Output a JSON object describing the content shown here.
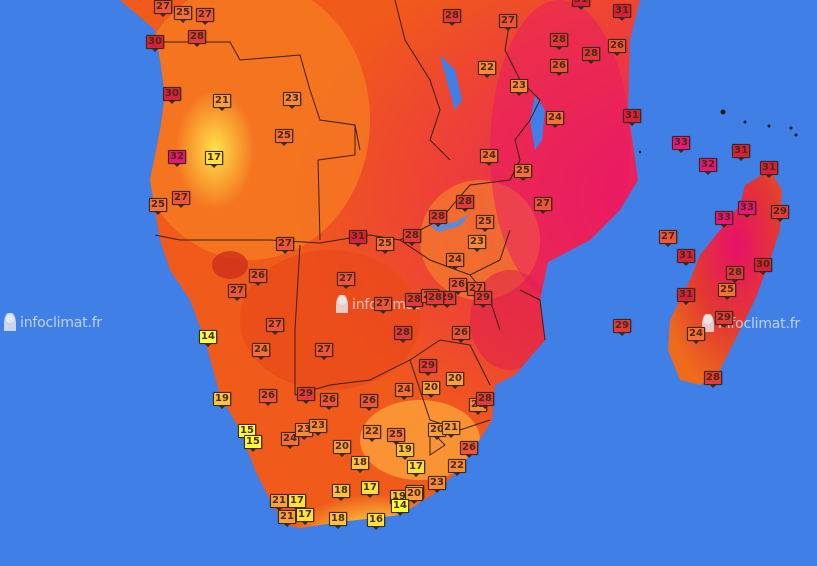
{
  "watermarks": [
    {
      "text": "infoclimat.fr"
    },
    {
      "text": "infoclimat"
    },
    {
      "text": "infoclimat.fr"
    }
  ],
  "stations": [
    {
      "t": "27"
    },
    {
      "t": "25"
    },
    {
      "t": "27"
    },
    {
      "t": "30"
    },
    {
      "t": "28"
    },
    {
      "t": "28"
    },
    {
      "t": "27"
    },
    {
      "t": "31"
    },
    {
      "t": "31"
    },
    {
      "t": "28"
    },
    {
      "t": "28"
    },
    {
      "t": "26"
    },
    {
      "t": "22"
    },
    {
      "t": "26"
    },
    {
      "t": "30"
    },
    {
      "t": "21"
    },
    {
      "t": "23"
    },
    {
      "t": "23"
    },
    {
      "t": "31"
    },
    {
      "t": "24"
    },
    {
      "t": "25"
    },
    {
      "t": "32"
    },
    {
      "t": "17"
    },
    {
      "t": "24"
    },
    {
      "t": "33"
    },
    {
      "t": "31"
    },
    {
      "t": "32"
    },
    {
      "t": "31"
    },
    {
      "t": "25"
    },
    {
      "t": "25"
    },
    {
      "t": "27"
    },
    {
      "t": "28"
    },
    {
      "t": "25"
    },
    {
      "t": "28"
    },
    {
      "t": "33"
    },
    {
      "t": "33"
    },
    {
      "t": "29"
    },
    {
      "t": "27"
    },
    {
      "t": "27"
    },
    {
      "t": "25"
    },
    {
      "t": "28"
    },
    {
      "t": "31"
    },
    {
      "t": "31"
    },
    {
      "t": "23"
    },
    {
      "t": "26"
    },
    {
      "t": "24"
    },
    {
      "t": "28"
    },
    {
      "t": "27"
    },
    {
      "t": "27"
    },
    {
      "t": "26"
    },
    {
      "t": "27"
    },
    {
      "t": "29"
    },
    {
      "t": "30"
    },
    {
      "t": "28"
    },
    {
      "t": "26"
    },
    {
      "t": "29"
    },
    {
      "t": "25"
    },
    {
      "t": "28"
    },
    {
      "t": "31"
    },
    {
      "t": "27"
    },
    {
      "t": "27"
    },
    {
      "t": "28"
    },
    {
      "t": "26"
    },
    {
      "t": "29"
    },
    {
      "t": "14"
    },
    {
      "t": "24"
    },
    {
      "t": "27"
    },
    {
      "t": "29"
    },
    {
      "t": "24"
    },
    {
      "t": "27"
    },
    {
      "t": "29"
    },
    {
      "t": "24"
    },
    {
      "t": "20"
    },
    {
      "t": "20"
    },
    {
      "t": "19"
    },
    {
      "t": "26"
    },
    {
      "t": "29"
    },
    {
      "t": "26"
    },
    {
      "t": "26"
    },
    {
      "t": "23"
    },
    {
      "t": "28"
    },
    {
      "t": "28"
    },
    {
      "t": "15"
    },
    {
      "t": "15"
    },
    {
      "t": "24"
    },
    {
      "t": "23"
    },
    {
      "t": "23"
    },
    {
      "t": "20"
    },
    {
      "t": "22"
    },
    {
      "t": "25"
    },
    {
      "t": "20"
    },
    {
      "t": "21"
    },
    {
      "t": "19"
    },
    {
      "t": "26"
    },
    {
      "t": "20"
    },
    {
      "t": "18"
    },
    {
      "t": "17"
    },
    {
      "t": "22"
    },
    {
      "t": "23"
    },
    {
      "t": "18"
    },
    {
      "t": "17"
    },
    {
      "t": "19"
    },
    {
      "t": "20"
    },
    {
      "t": "14"
    },
    {
      "t": "21"
    },
    {
      "t": "17"
    },
    {
      "t": "21"
    },
    {
      "t": "17"
    },
    {
      "t": "18"
    },
    {
      "t": "16"
    }
  ]
}
